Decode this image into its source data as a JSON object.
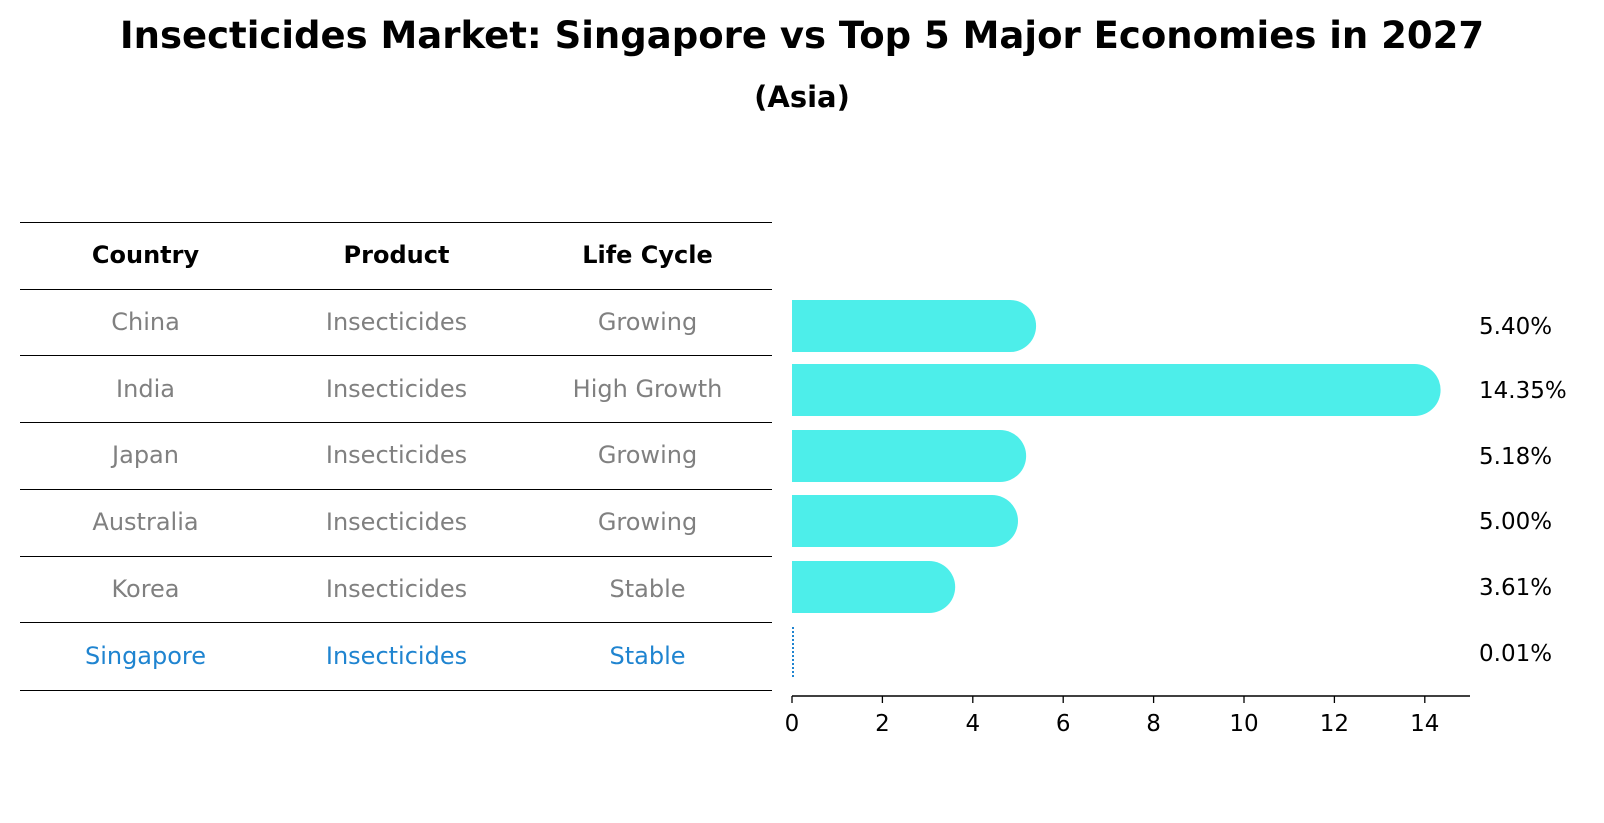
{
  "title": "Insecticides Market: Singapore vs Top 5 Major Economies in 2027",
  "subtitle": "(Asia)",
  "table": {
    "headers": [
      "Country",
      "Product",
      "Life Cycle"
    ],
    "rows": [
      {
        "country": "China",
        "product": "Insecticides",
        "life_cycle": "Growing"
      },
      {
        "country": "India",
        "product": "Insecticides",
        "life_cycle": "High Growth"
      },
      {
        "country": "Japan",
        "product": "Insecticides",
        "life_cycle": "Growing"
      },
      {
        "country": "Australia",
        "product": "Insecticides",
        "life_cycle": "Growing"
      },
      {
        "country": "Korea",
        "product": "Insecticides",
        "life_cycle": "Stable"
      },
      {
        "country": "Singapore",
        "product": "Insecticides",
        "life_cycle": "Stable"
      }
    ],
    "highlight_row": "Singapore"
  },
  "colors": {
    "bar": "#4DEEEA",
    "highlight": "#1f84d0",
    "muted_text": "#808080"
  },
  "chart_data": {
    "type": "bar",
    "orientation": "horizontal",
    "categories": [
      "China",
      "India",
      "Japan",
      "Australia",
      "Korea",
      "Singapore"
    ],
    "values": [
      5.4,
      14.35,
      5.18,
      5.0,
      3.61,
      0.01
    ],
    "value_labels": [
      "5.40%",
      "14.35%",
      "5.18%",
      "5.00%",
      "3.61%",
      "0.01%"
    ],
    "xlim": [
      0,
      15
    ],
    "xticks": [
      0,
      2,
      4,
      6,
      8,
      10,
      12,
      14
    ],
    "grid": false,
    "legend": "none"
  }
}
